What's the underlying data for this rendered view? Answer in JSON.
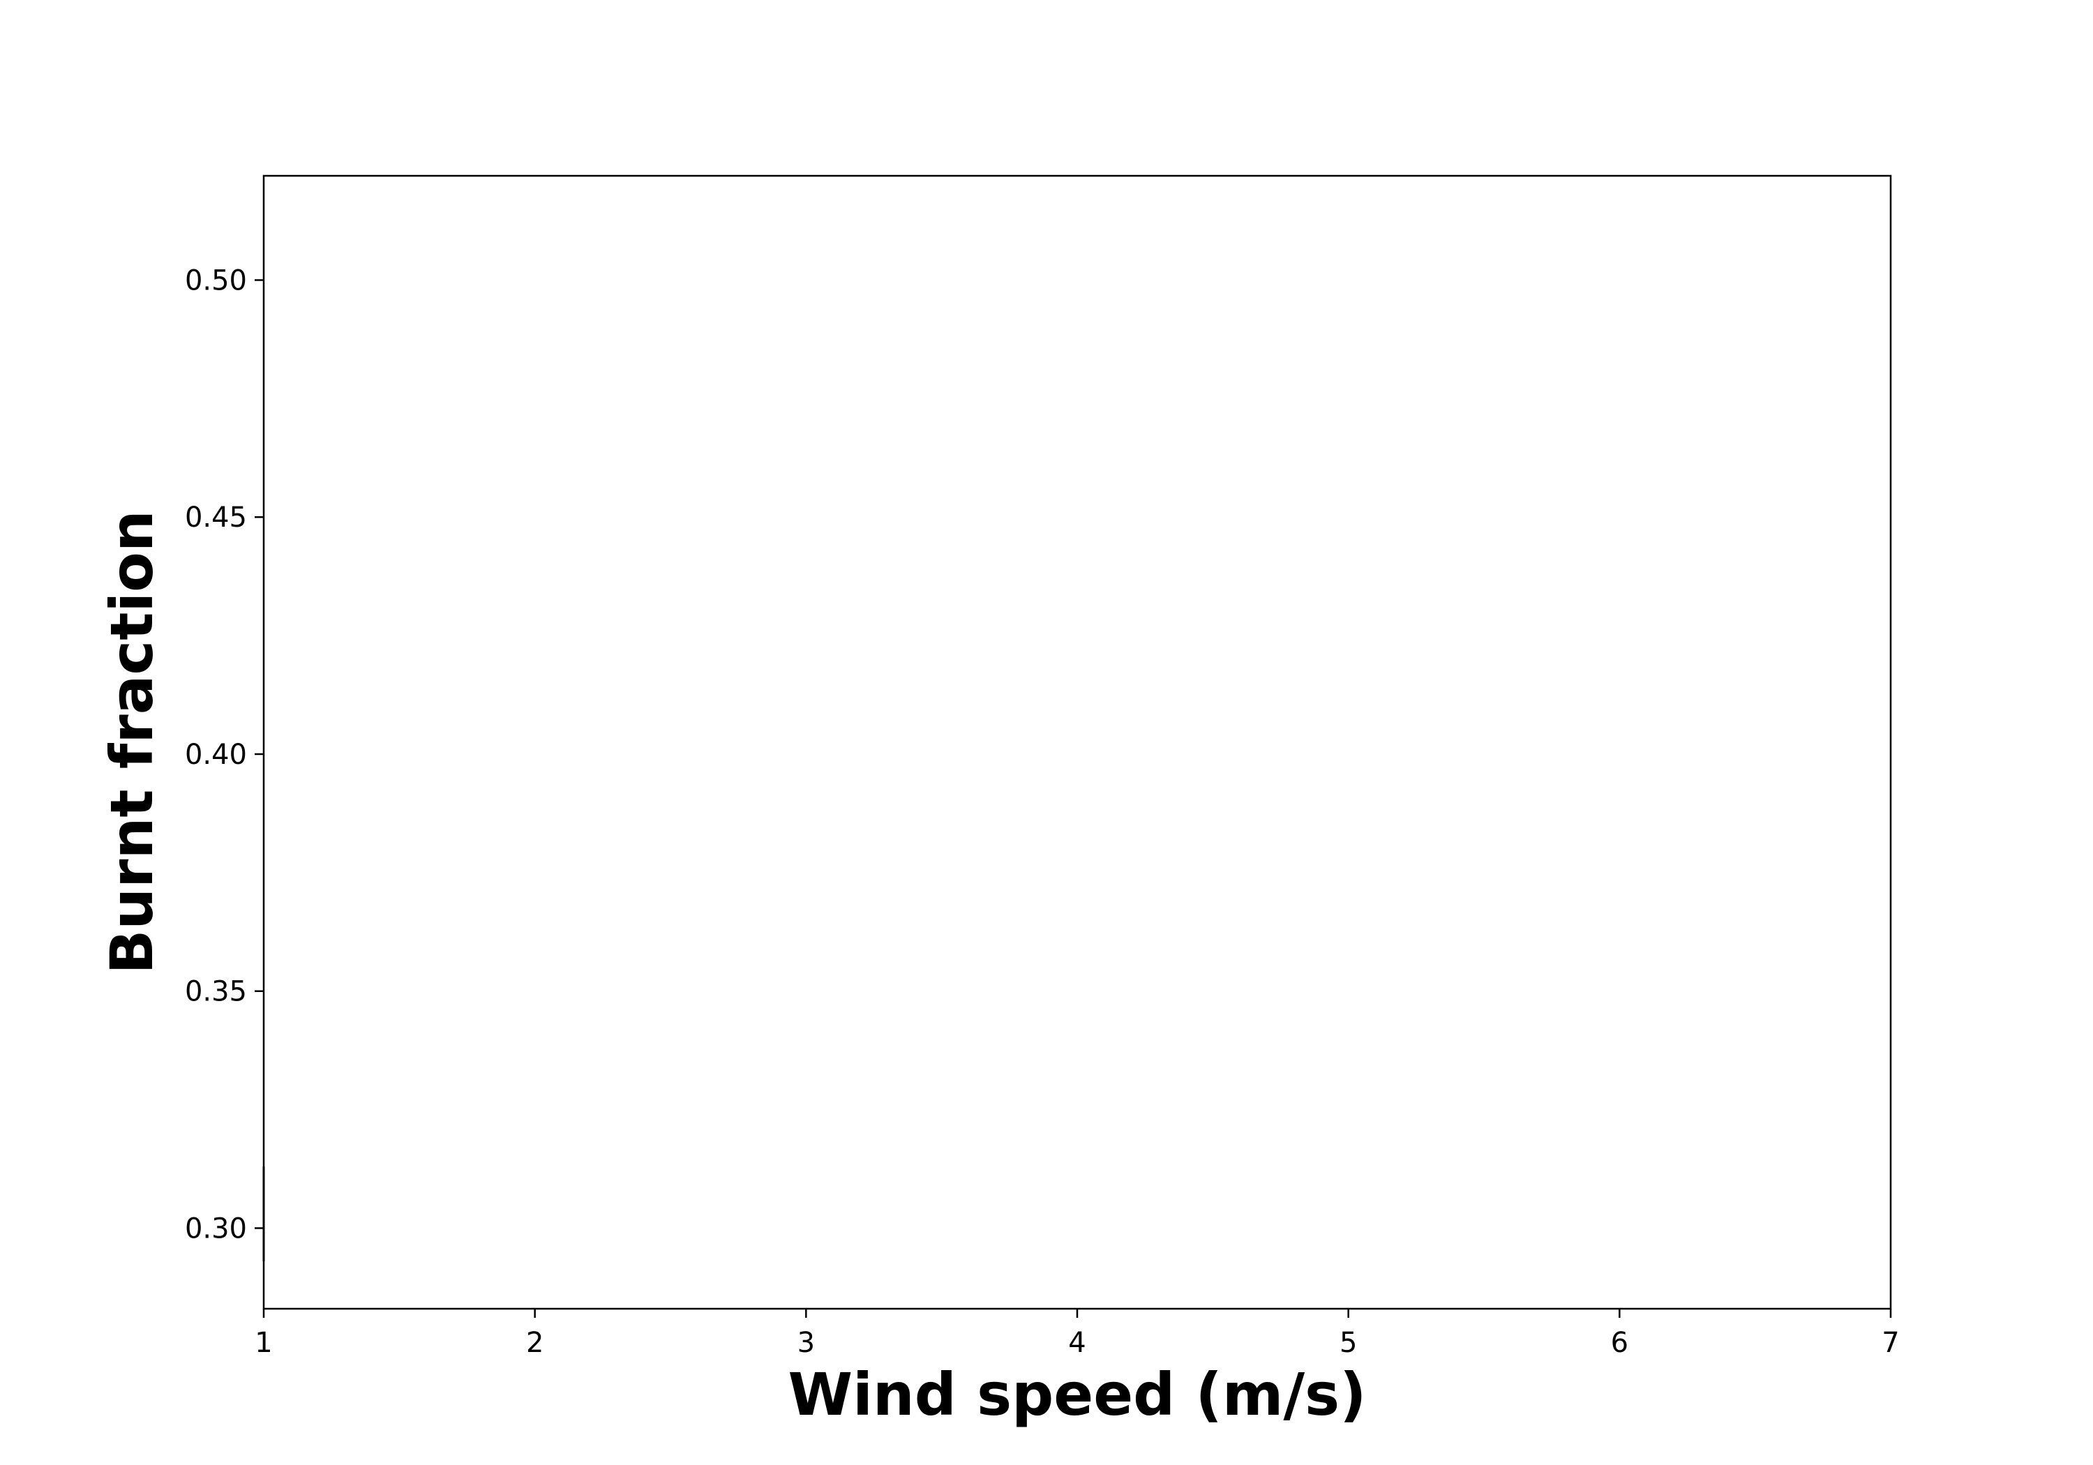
{
  "chart_data": {
    "type": "line",
    "title": "",
    "xlabel": "Wind speed (m/s)",
    "ylabel": "Burnt fraction",
    "xlim": [
      1,
      7
    ],
    "ylim": [
      0.283,
      0.522
    ],
    "xticks": [
      1,
      2,
      3,
      4,
      5,
      6,
      7
    ],
    "xtick_labels": [
      "1",
      "2",
      "3",
      "4",
      "5",
      "6",
      "7"
    ],
    "yticks": [
      0.3,
      0.35,
      0.4,
      0.45,
      0.5
    ],
    "ytick_labels": [
      "0.30",
      "0.35",
      "0.40",
      "0.45",
      "0.50"
    ],
    "grid": false,
    "legend": "none",
    "series": [
      {
        "color": "#000000",
        "x": [
          1.0,
          1.0
        ],
        "y": [
          0.293,
          0.313
        ]
      }
    ]
  }
}
